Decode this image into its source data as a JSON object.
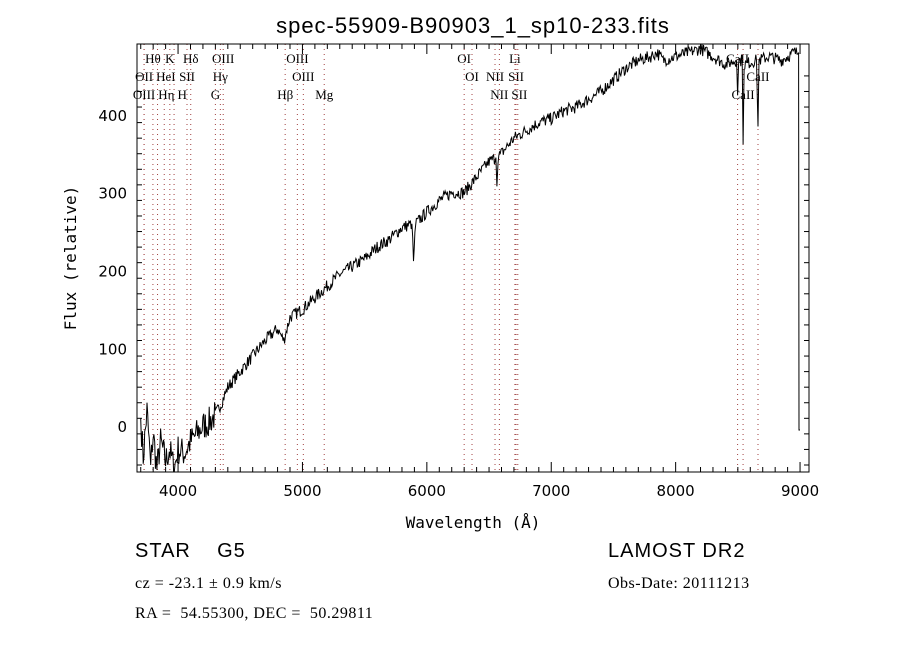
{
  "chart_data": {
    "type": "line",
    "title": "spec-55909-B90903_1_sp10-233.fits",
    "xlabel": "Wavelength (Å)",
    "ylabel": "Flux (relative)",
    "xlim": [
      3670,
      9072
    ],
    "ylim": [
      -59,
      491
    ],
    "xticks": [
      4000,
      5000,
      6000,
      7000,
      8000,
      9000
    ],
    "yticks": [
      0,
      100,
      200,
      300,
      400
    ],
    "grid": false,
    "series": [
      {
        "name": "spectrum",
        "points": [
          [
            3700,
            10
          ],
          [
            3720,
            -40
          ],
          [
            3750,
            20
          ],
          [
            3780,
            -50
          ],
          [
            3800,
            -10
          ],
          [
            3830,
            -55
          ],
          [
            3860,
            -20
          ],
          [
            3900,
            -45
          ],
          [
            3930,
            -30
          ],
          [
            3970,
            -55
          ],
          [
            4000,
            -30
          ],
          [
            4050,
            -35
          ],
          [
            4100,
            -20
          ],
          [
            4150,
            -10
          ],
          [
            4200,
            0
          ],
          [
            4250,
            5
          ],
          [
            4300,
            15
          ],
          [
            4350,
            30
          ],
          [
            4400,
            50
          ],
          [
            4500,
            70
          ],
          [
            4600,
            90
          ],
          [
            4700,
            110
          ],
          [
            4800,
            125
          ],
          [
            4850,
            110
          ],
          [
            4900,
            140
          ],
          [
            5000,
            150
          ],
          [
            5100,
            165
          ],
          [
            5200,
            180
          ],
          [
            5300,
            195
          ],
          [
            5400,
            205
          ],
          [
            5500,
            215
          ],
          [
            5600,
            230
          ],
          [
            5700,
            240
          ],
          [
            5800,
            255
          ],
          [
            5880,
            260
          ],
          [
            5893,
            212
          ],
          [
            5910,
            260
          ],
          [
            6000,
            275
          ],
          [
            6100,
            290
          ],
          [
            6200,
            300
          ],
          [
            6300,
            300
          ],
          [
            6400,
            320
          ],
          [
            6500,
            340
          ],
          [
            6555,
            345
          ],
          [
            6563,
            308
          ],
          [
            6572,
            345
          ],
          [
            6700,
            370
          ],
          [
            6800,
            380
          ],
          [
            6900,
            390
          ],
          [
            7000,
            395
          ],
          [
            7100,
            405
          ],
          [
            7200,
            410
          ],
          [
            7300,
            420
          ],
          [
            7400,
            430
          ],
          [
            7500,
            445
          ],
          [
            7600,
            460
          ],
          [
            7700,
            470
          ],
          [
            7800,
            475
          ],
          [
            7850,
            480
          ],
          [
            7900,
            470
          ],
          [
            8000,
            475
          ],
          [
            8100,
            480
          ],
          [
            8200,
            485
          ],
          [
            8300,
            475
          ],
          [
            8400,
            465
          ],
          [
            8490,
            470
          ],
          [
            8498,
            425
          ],
          [
            8506,
            470
          ],
          [
            8535,
            470
          ],
          [
            8542,
            362
          ],
          [
            8550,
            465
          ],
          [
            8650,
            470
          ],
          [
            8662,
            385
          ],
          [
            8670,
            470
          ],
          [
            8750,
            475
          ],
          [
            8850,
            470
          ],
          [
            8950,
            480
          ],
          [
            8988,
            480
          ],
          [
            8992,
            -5
          ],
          [
            9000,
            -5
          ]
        ]
      }
    ],
    "line_labels": [
      {
        "label": "Hθ",
        "wl": 3798,
        "row": 0
      },
      {
        "label": "K",
        "wl": 3934,
        "row": 0
      },
      {
        "label": "Hδ",
        "wl": 4102,
        "row": 0
      },
      {
        "label": "OIII",
        "wl": 4363,
        "row": 0
      },
      {
        "label": "OIII",
        "wl": 4959,
        "row": 0
      },
      {
        "label": "OI",
        "wl": 6300,
        "row": 0
      },
      {
        "label": "Li",
        "wl": 6708,
        "row": 0
      },
      {
        "label": "CaII",
        "wl": 8498,
        "row": 0
      },
      {
        "label": "OII",
        "wl": 3727,
        "row": 1
      },
      {
        "label": "HeI",
        "wl": 3889,
        "row": 1
      },
      {
        "label": "SII",
        "wl": 4072,
        "row": 1
      },
      {
        "label": "Hγ",
        "wl": 4340,
        "row": 1
      },
      {
        "label": "OIII",
        "wl": 5007,
        "row": 1
      },
      {
        "label": "OI",
        "wl": 6363,
        "row": 1
      },
      {
        "label": "NII",
        "wl": 6548,
        "row": 1
      },
      {
        "label": "SII",
        "wl": 6717,
        "row": 1
      },
      {
        "label": "CaII",
        "wl": 8662,
        "row": 1
      },
      {
        "label": "OIII",
        "wl": 3727,
        "row": 2
      },
      {
        "label": "Hη",
        "wl": 3835,
        "row": 2
      },
      {
        "label": "H",
        "wl": 3968,
        "row": 2
      },
      {
        "label": "G",
        "wl": 4300,
        "row": 2
      },
      {
        "label": "Hβ",
        "wl": 4861,
        "row": 2
      },
      {
        "label": "Mg",
        "wl": 5175,
        "row": 2
      },
      {
        "label": "NII",
        "wl": 6583,
        "row": 2
      },
      {
        "label": "SII",
        "wl": 6731,
        "row": 2
      },
      {
        "label": "CaII",
        "wl": 8542,
        "row": 2
      }
    ]
  },
  "info": {
    "class": "STAR    G5",
    "cz": "cz = -23.1 ± 0.9 km/s",
    "coords": "RA =  54.55300, DEC =  50.29811",
    "survey": "LAMOST DR2",
    "obs_date": "Obs-Date: 20111213"
  }
}
